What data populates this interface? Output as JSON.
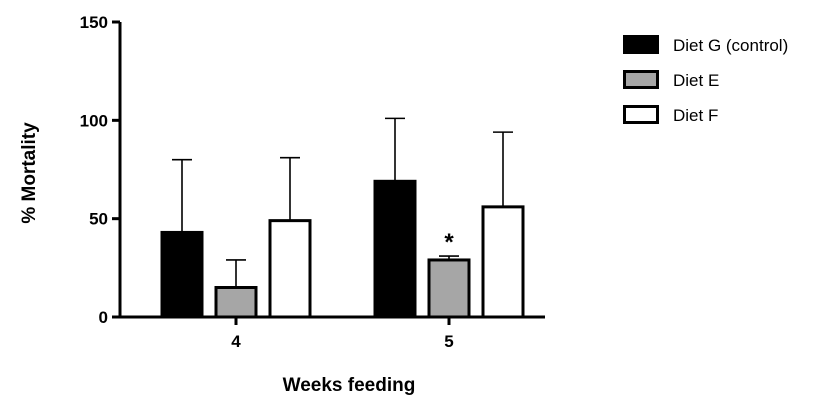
{
  "chart_data": {
    "type": "bar",
    "xlabel": "Weeks feeding",
    "ylabel": "% Mortality",
    "ylim": [
      0,
      150
    ],
    "yticks": [
      "0",
      "50",
      "100",
      "150"
    ],
    "categories": [
      "4",
      "5"
    ],
    "series": [
      {
        "name": "Diet G (control)",
        "color": "#000000",
        "values": [
          43,
          69
        ],
        "errors": [
          37,
          32
        ]
      },
      {
        "name": "Diet E",
        "color": "#a6a6a6",
        "values": [
          15,
          29
        ],
        "errors": [
          14,
          2
        ]
      },
      {
        "name": "Diet F",
        "color": "#ffffff",
        "values": [
          49,
          56
        ],
        "errors": [
          32,
          38
        ]
      }
    ],
    "annotations": [
      {
        "text": "*",
        "category": "5",
        "series": "Diet E"
      }
    ],
    "legend_position": "top-right",
    "grid": false
  }
}
